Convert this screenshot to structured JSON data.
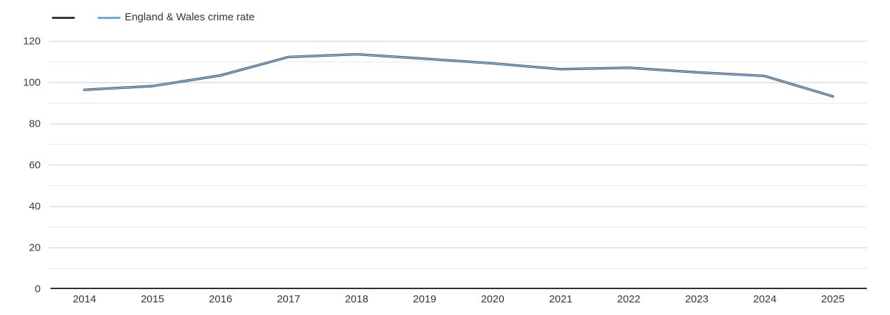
{
  "legend": {
    "items": [
      {
        "label": "",
        "color": "#3d3238"
      },
      {
        "label": "England & Wales crime rate",
        "color": "#79a8ce"
      }
    ]
  },
  "colors": {
    "background": "#ffffff",
    "grid_major": "#cbcbcb",
    "grid_minor": "#e9e9e9",
    "axis": "#2c2c2c",
    "tick_text": "#3d3d3d",
    "area_series": "#3d3238",
    "england_wales_series": "#79a8ce"
  },
  "chart_data": {
    "type": "line",
    "categories": [
      "2014",
      "2015",
      "2016",
      "2017",
      "2018",
      "2019",
      "2020",
      "2021",
      "2022",
      "2023",
      "2024",
      "2025"
    ],
    "series": [
      {
        "name": "",
        "color": "#3d3238",
        "values": [
          96.5,
          98.3,
          103.5,
          112.4,
          113.7,
          111.6,
          109.3,
          106.5,
          107.2,
          105.0,
          103.2,
          93.3
        ]
      },
      {
        "name": "England & Wales crime rate",
        "color": "#79a8ce",
        "values": [
          96.5,
          98.3,
          103.5,
          112.4,
          113.7,
          111.6,
          109.3,
          106.5,
          107.2,
          105.0,
          103.2,
          93.3
        ]
      }
    ],
    "title": "",
    "xlabel": "",
    "ylabel": "",
    "ylim": [
      0,
      120
    ],
    "y_major_ticks": [
      0,
      20,
      40,
      60,
      80,
      100,
      120
    ],
    "y_minor_step": 10,
    "grid": true,
    "legend_position": "top-left"
  }
}
